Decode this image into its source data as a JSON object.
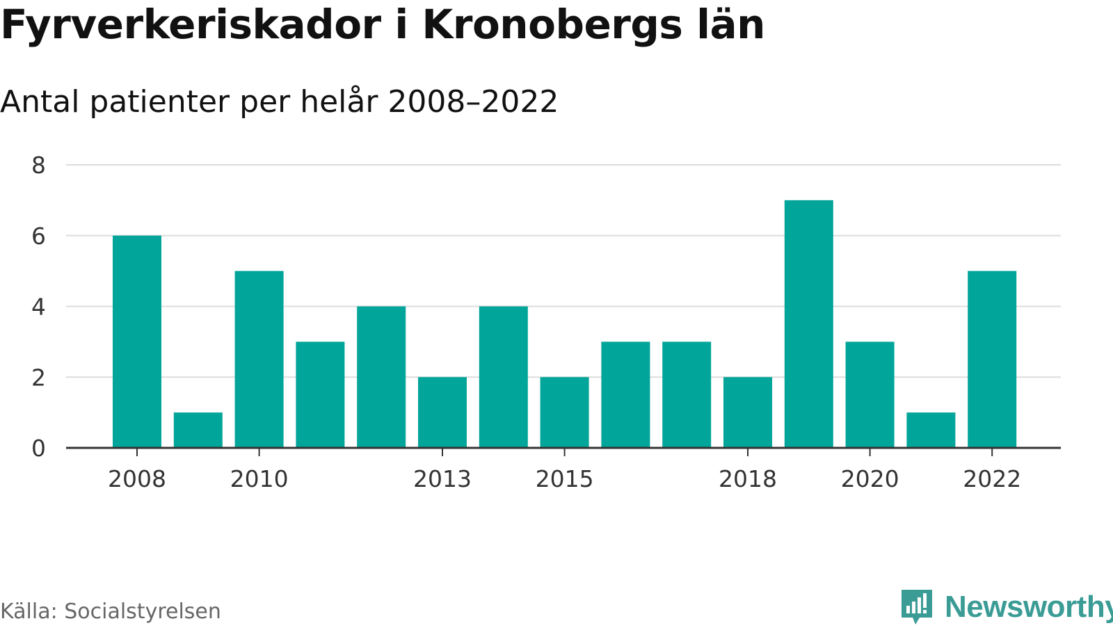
{
  "header": {
    "title": "Fyrverkeriskador i Kronobergs län",
    "subtitle": "Antal patienter per helår 2008–2022"
  },
  "footer": {
    "source": "Källa: Socialstyrelsen",
    "brand": "Newsworthy"
  },
  "colors": {
    "bar": "#02a59a",
    "grid": "#dddddd",
    "axis": "#333333",
    "tick_text": "#333333",
    "brand": "#3a9c95"
  },
  "chart_data": {
    "type": "bar",
    "title": "Fyrverkeriskador i Kronobergs län",
    "subtitle": "Antal patienter per helår 2008–2022",
    "categories": [
      "2008",
      "2009",
      "2010",
      "2011",
      "2012",
      "2013",
      "2014",
      "2015",
      "2016",
      "2017",
      "2018",
      "2019",
      "2020",
      "2021",
      "2022"
    ],
    "values": [
      6,
      1,
      5,
      3,
      4,
      2,
      4,
      2,
      3,
      3,
      2,
      7,
      3,
      1,
      5
    ],
    "x_tick_labels": [
      "2008",
      "2010",
      "2013",
      "2015",
      "2018",
      "2020",
      "2022"
    ],
    "y_ticks": [
      0,
      2,
      4,
      6,
      8
    ],
    "ylim": [
      0,
      8
    ],
    "grid": true,
    "legend": "none"
  }
}
